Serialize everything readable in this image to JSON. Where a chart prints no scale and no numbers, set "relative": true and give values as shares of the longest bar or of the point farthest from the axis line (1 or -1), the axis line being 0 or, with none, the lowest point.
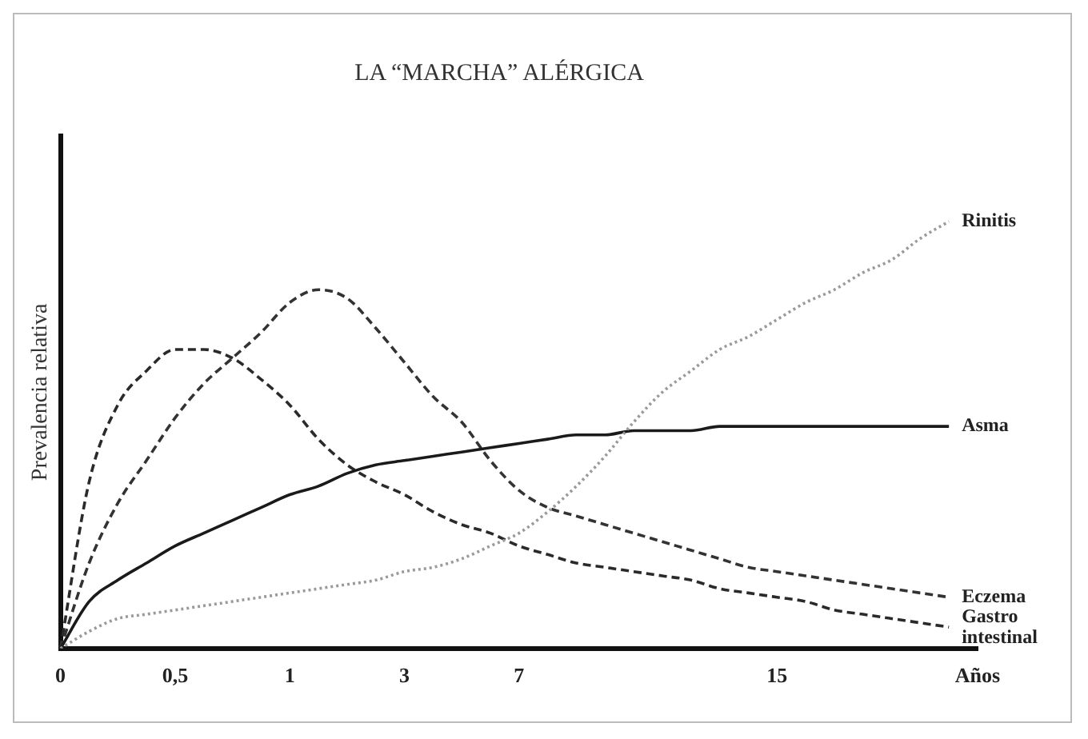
{
  "chart_data": {
    "type": "line",
    "title": "LA “MARCHA” ALÉRGICA",
    "ylabel": "Prevalencia relativa",
    "relative": true,
    "legend": false,
    "grid": false,
    "marker": "none",
    "categories": [
      "0",
      null,
      null,
      null,
      "0,5",
      null,
      null,
      null,
      "1",
      null,
      null,
      null,
      "3",
      null,
      null,
      null,
      "7",
      null,
      null,
      null,
      null,
      null,
      null,
      null,
      null,
      "15",
      null,
      null,
      null,
      null,
      null,
      null,
      "Años"
    ],
    "series": [
      {
        "name": "Rinitis",
        "color": "#9a9a9a",
        "line_style": "dotted",
        "values": [
          0,
          0.04,
          0.07,
          0.08,
          0.09,
          0.1,
          0.11,
          0.12,
          0.13,
          0.14,
          0.15,
          0.16,
          0.18,
          0.19,
          0.21,
          0.24,
          0.27,
          0.32,
          0.38,
          0.45,
          0.53,
          0.6,
          0.65,
          0.7,
          0.73,
          0.77,
          0.81,
          0.84,
          0.88,
          0.91,
          0.96,
          1.0,
          null
        ]
      },
      {
        "name": "Asma",
        "color": "#1a1a1a",
        "line_style": "solid",
        "values": [
          0,
          0.11,
          0.16,
          0.2,
          0.24,
          0.27,
          0.3,
          0.33,
          0.36,
          0.38,
          0.41,
          0.43,
          0.44,
          0.45,
          0.46,
          0.47,
          0.48,
          0.49,
          0.5,
          0.5,
          0.51,
          0.51,
          0.51,
          0.52,
          0.52,
          0.52,
          0.52,
          0.52,
          0.52,
          0.52,
          0.52,
          0.52,
          null
        ]
      },
      {
        "name": "Eczema",
        "color": "#333333",
        "line_style": "dashed",
        "values": [
          0,
          0.2,
          0.34,
          0.44,
          0.54,
          0.62,
          0.68,
          0.74,
          0.81,
          0.84,
          0.82,
          0.75,
          0.67,
          0.59,
          0.53,
          0.44,
          0.37,
          0.33,
          0.31,
          0.29,
          0.27,
          0.25,
          0.23,
          0.21,
          0.19,
          0.18,
          0.17,
          0.16,
          0.15,
          0.14,
          0.13,
          0.12,
          null
        ]
      },
      {
        "name": "Gastro intestinal",
        "color": "#2a2a2a",
        "line_style": "dashed",
        "values": [
          0,
          0.39,
          0.57,
          0.65,
          0.7,
          0.7,
          0.68,
          0.63,
          0.57,
          0.49,
          0.43,
          0.39,
          0.36,
          0.32,
          0.29,
          0.27,
          0.24,
          0.22,
          0.2,
          0.19,
          0.18,
          0.17,
          0.16,
          0.14,
          0.13,
          0.12,
          0.11,
          0.09,
          0.08,
          0.07,
          0.06,
          0.05,
          null
        ]
      }
    ]
  }
}
